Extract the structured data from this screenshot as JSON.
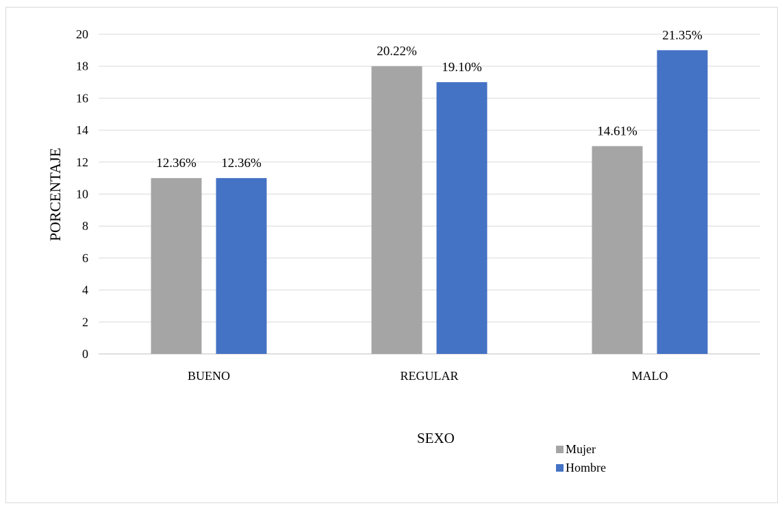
{
  "chart_data": {
    "type": "bar",
    "title": "",
    "categories": [
      "BUENO",
      "REGULAR",
      "MALO"
    ],
    "series": [
      {
        "name": "Mujer",
        "color": "#a5a5a5",
        "values": [
          11,
          18,
          13
        ],
        "labels": [
          "12.36%",
          "20.22%",
          "14.61%"
        ]
      },
      {
        "name": "Hombre",
        "color": "#4472c4",
        "values": [
          11,
          17,
          19
        ],
        "labels": [
          "12.36%",
          "19.10%",
          "21.35%"
        ]
      }
    ],
    "ylabel": "PORCENTAJE",
    "xlabel": "",
    "ylim": [
      0,
      20
    ],
    "yticks": [
      "0",
      "2",
      "4",
      "6",
      "8",
      "10",
      "12",
      "14",
      "16",
      "18",
      "20"
    ],
    "grid": true,
    "legend": {
      "title": "SEXO",
      "placement": "bottom"
    }
  }
}
